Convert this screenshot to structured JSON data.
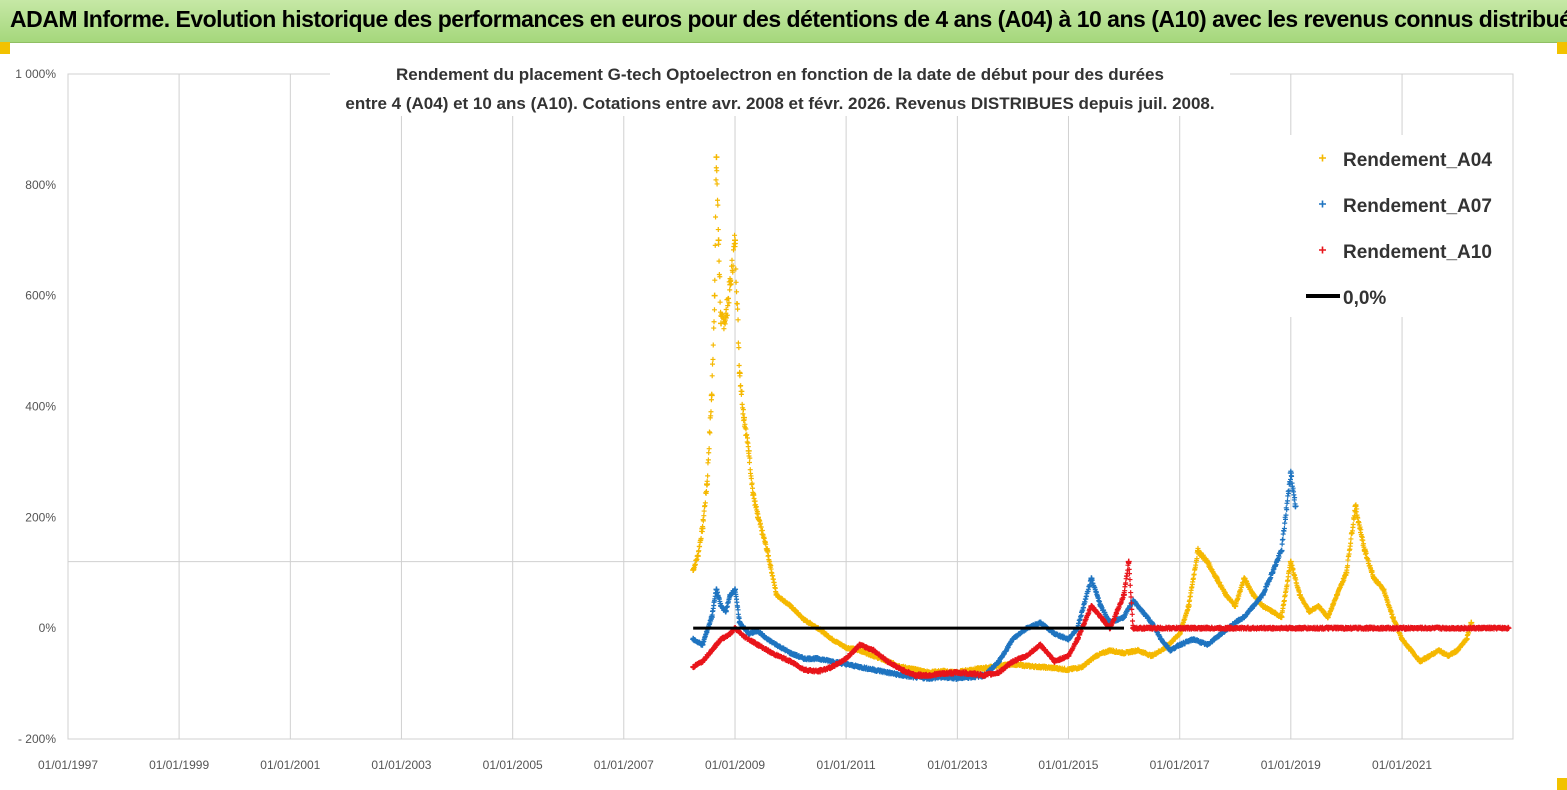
{
  "header": {
    "title": "ADAM Informe. Evolution historique des performances en euros pour des détentions de 4 ans (A04) à 10 ans (A10) avec les revenus connus distribués",
    "background": "#b5df8f"
  },
  "chart_data": {
    "type": "scatter",
    "title_line1": "Rendement du placement G-tech Optoelectron  en fonction de la date de début pour des durées",
    "title_line2": "entre 4 (A04) et 10 ans (A10).  Cotations entre avr. 2008 et févr. 2026. Revenus DISTRIBUES depuis juil. 2008.",
    "xlim": [
      "1997-01-01",
      "2022-12-31"
    ],
    "ylim": [
      -200,
      1000
    ],
    "y_ticks": [
      -200,
      0,
      200,
      400,
      600,
      800,
      1000
    ],
    "y_tick_labels": [
      "- 200%",
      "0%",
      "200%",
      "400%",
      "600%",
      "800%",
      "1 000%"
    ],
    "x_ticks": [
      "1997-01-01",
      "1999-01-01",
      "2001-01-01",
      "2003-01-01",
      "2005-01-01",
      "2007-01-01",
      "2009-01-01",
      "2011-01-01",
      "2013-01-01",
      "2015-01-01",
      "2017-01-01",
      "2019-01-01",
      "2021-01-01"
    ],
    "x_tick_labels": [
      "01/01/1997",
      "01/01/1999",
      "01/01/2001",
      "01/01/2003",
      "01/01/2005",
      "01/01/2007",
      "01/01/2009",
      "01/01/2011",
      "01/01/2013",
      "01/01/2015",
      "01/01/2017",
      "01/01/2019",
      "01/01/2021"
    ],
    "grid": true,
    "legend_position": "top-right",
    "series": [
      {
        "name": "Rendement_A04",
        "color": "#f5b800",
        "marker": "+",
        "points": [
          [
            "2008-04-01",
            105
          ],
          [
            "2008-05-01",
            130
          ],
          [
            "2008-06-01",
            180
          ],
          [
            "2008-07-01",
            260
          ],
          [
            "2008-08-01",
            420
          ],
          [
            "2008-08-20",
            600
          ],
          [
            "2008-09-01",
            850
          ],
          [
            "2008-09-15",
            700
          ],
          [
            "2008-10-01",
            550
          ],
          [
            "2008-11-01",
            560
          ],
          [
            "2008-12-01",
            620
          ],
          [
            "2009-01-01",
            700
          ],
          [
            "2009-02-01",
            460
          ],
          [
            "2009-03-01",
            380
          ],
          [
            "2009-04-01",
            320
          ],
          [
            "2009-05-01",
            240
          ],
          [
            "2009-06-01",
            200
          ],
          [
            "2009-08-01",
            140
          ],
          [
            "2009-10-01",
            60
          ],
          [
            "2010-01-01",
            40
          ],
          [
            "2010-04-01",
            15
          ],
          [
            "2010-07-01",
            0
          ],
          [
            "2010-10-01",
            -20
          ],
          [
            "2011-01-01",
            -35
          ],
          [
            "2011-04-01",
            -40
          ],
          [
            "2011-07-01",
            -50
          ],
          [
            "2011-10-01",
            -60
          ],
          [
            "2012-01-01",
            -70
          ],
          [
            "2012-04-01",
            -75
          ],
          [
            "2012-07-01",
            -80
          ],
          [
            "2012-10-01",
            -78
          ],
          [
            "2013-01-01",
            -80
          ],
          [
            "2013-04-01",
            -75
          ],
          [
            "2013-07-01",
            -72
          ],
          [
            "2013-10-01",
            -68
          ],
          [
            "2014-01-01",
            -65
          ],
          [
            "2014-04-01",
            -68
          ],
          [
            "2014-07-01",
            -70
          ],
          [
            "2014-10-01",
            -72
          ],
          [
            "2015-01-01",
            -75
          ],
          [
            "2015-04-01",
            -70
          ],
          [
            "2015-07-01",
            -50
          ],
          [
            "2015-10-01",
            -40
          ],
          [
            "2016-01-01",
            -45
          ],
          [
            "2016-04-01",
            -40
          ],
          [
            "2016-07-01",
            -50
          ],
          [
            "2016-10-01",
            -35
          ],
          [
            "2017-01-01",
            -10
          ],
          [
            "2017-03-01",
            40
          ],
          [
            "2017-05-01",
            140
          ],
          [
            "2017-07-01",
            120
          ],
          [
            "2017-09-01",
            90
          ],
          [
            "2017-11-01",
            60
          ],
          [
            "2018-01-01",
            40
          ],
          [
            "2018-03-01",
            90
          ],
          [
            "2018-05-01",
            60
          ],
          [
            "2018-07-01",
            40
          ],
          [
            "2018-09-01",
            30
          ],
          [
            "2018-11-01",
            20
          ],
          [
            "2019-01-01",
            120
          ],
          [
            "2019-03-01",
            60
          ],
          [
            "2019-05-01",
            30
          ],
          [
            "2019-07-01",
            40
          ],
          [
            "2019-09-01",
            20
          ],
          [
            "2019-11-01",
            60
          ],
          [
            "2020-01-01",
            100
          ],
          [
            "2020-03-01",
            220
          ],
          [
            "2020-05-01",
            140
          ],
          [
            "2020-07-01",
            90
          ],
          [
            "2020-09-01",
            70
          ],
          [
            "2020-11-01",
            20
          ],
          [
            "2021-01-01",
            -20
          ],
          [
            "2021-03-01",
            -40
          ],
          [
            "2021-05-01",
            -60
          ],
          [
            "2021-07-01",
            -50
          ],
          [
            "2021-09-01",
            -40
          ],
          [
            "2021-11-01",
            -50
          ],
          [
            "2022-01-01",
            -40
          ],
          [
            "2022-03-01",
            -20
          ],
          [
            "2022-04-01",
            10
          ]
        ]
      },
      {
        "name": "Rendement_A07",
        "color": "#1f74c0",
        "marker": "+",
        "points": [
          [
            "2008-04-01",
            -20
          ],
          [
            "2008-06-01",
            -30
          ],
          [
            "2008-08-01",
            20
          ],
          [
            "2008-09-01",
            70
          ],
          [
            "2008-10-01",
            40
          ],
          [
            "2008-11-01",
            30
          ],
          [
            "2008-12-01",
            60
          ],
          [
            "2009-01-01",
            70
          ],
          [
            "2009-02-01",
            10
          ],
          [
            "2009-04-01",
            -10
          ],
          [
            "2009-06-01",
            -5
          ],
          [
            "2009-08-01",
            -20
          ],
          [
            "2009-10-01",
            -30
          ],
          [
            "2010-01-01",
            -45
          ],
          [
            "2010-04-01",
            -55
          ],
          [
            "2010-07-01",
            -55
          ],
          [
            "2010-10-01",
            -60
          ],
          [
            "2011-01-01",
            -65
          ],
          [
            "2011-04-01",
            -70
          ],
          [
            "2011-07-01",
            -75
          ],
          [
            "2011-10-01",
            -80
          ],
          [
            "2012-01-01",
            -85
          ],
          [
            "2012-04-01",
            -88
          ],
          [
            "2012-07-01",
            -90
          ],
          [
            "2012-10-01",
            -88
          ],
          [
            "2013-01-01",
            -90
          ],
          [
            "2013-04-01",
            -88
          ],
          [
            "2013-07-01",
            -85
          ],
          [
            "2013-10-01",
            -60
          ],
          [
            "2014-01-01",
            -20
          ],
          [
            "2014-04-01",
            0
          ],
          [
            "2014-07-01",
            10
          ],
          [
            "2014-10-01",
            -10
          ],
          [
            "2015-01-01",
            -20
          ],
          [
            "2015-03-01",
            0
          ],
          [
            "2015-06-01",
            90
          ],
          [
            "2015-08-01",
            40
          ],
          [
            "2015-10-01",
            10
          ],
          [
            "2016-01-01",
            20
          ],
          [
            "2016-03-01",
            50
          ],
          [
            "2016-05-01",
            30
          ],
          [
            "2016-07-01",
            10
          ],
          [
            "2016-09-01",
            -20
          ],
          [
            "2016-11-01",
            -40
          ],
          [
            "2017-01-01",
            -30
          ],
          [
            "2017-04-01",
            -20
          ],
          [
            "2017-07-01",
            -30
          ],
          [
            "2017-10-01",
            -10
          ],
          [
            "2018-01-01",
            10
          ],
          [
            "2018-03-01",
            20
          ],
          [
            "2018-05-01",
            40
          ],
          [
            "2018-07-01",
            60
          ],
          [
            "2018-09-01",
            100
          ],
          [
            "2018-11-01",
            140
          ],
          [
            "2019-01-01",
            280
          ],
          [
            "2019-02-01",
            220
          ]
        ]
      },
      {
        "name": "Rendement_A10",
        "color": "#e8151b",
        "marker": "+",
        "points": [
          [
            "2008-04-01",
            -70
          ],
          [
            "2008-06-01",
            -60
          ],
          [
            "2008-08-01",
            -40
          ],
          [
            "2008-10-01",
            -20
          ],
          [
            "2008-12-01",
            -10
          ],
          [
            "2009-01-01",
            0
          ],
          [
            "2009-03-01",
            -15
          ],
          [
            "2009-06-01",
            -30
          ],
          [
            "2009-09-01",
            -45
          ],
          [
            "2010-01-01",
            -60
          ],
          [
            "2010-04-01",
            -75
          ],
          [
            "2010-07-01",
            -78
          ],
          [
            "2010-10-01",
            -70
          ],
          [
            "2011-01-01",
            -55
          ],
          [
            "2011-04-01",
            -30
          ],
          [
            "2011-07-01",
            -40
          ],
          [
            "2011-10-01",
            -60
          ],
          [
            "2012-01-01",
            -75
          ],
          [
            "2012-04-01",
            -85
          ],
          [
            "2012-07-01",
            -85
          ],
          [
            "2012-10-01",
            -82
          ],
          [
            "2013-01-01",
            -80
          ],
          [
            "2013-04-01",
            -82
          ],
          [
            "2013-07-01",
            -85
          ],
          [
            "2013-10-01",
            -80
          ],
          [
            "2014-01-01",
            -60
          ],
          [
            "2014-04-01",
            -50
          ],
          [
            "2014-07-01",
            -30
          ],
          [
            "2014-10-01",
            -60
          ],
          [
            "2015-01-01",
            -50
          ],
          [
            "2015-03-01",
            -20
          ],
          [
            "2015-06-01",
            40
          ],
          [
            "2015-08-01",
            20
          ],
          [
            "2015-10-01",
            0
          ],
          [
            "2016-01-01",
            60
          ],
          [
            "2016-02-01",
            120
          ],
          [
            "2016-03-01",
            0
          ],
          [
            "2016-06-01",
            0
          ],
          [
            "2017-01-01",
            0
          ],
          [
            "2018-01-01",
            0
          ],
          [
            "2019-01-01",
            0
          ],
          [
            "2020-01-01",
            0
          ],
          [
            "2021-01-01",
            0
          ],
          [
            "2022-01-01",
            0
          ],
          [
            "2022-12-01",
            0
          ]
        ]
      },
      {
        "name": "0,0%",
        "color": "#000000",
        "marker": "line",
        "points": [
          [
            "2008-04-01",
            0
          ],
          [
            "2016-01-01",
            0
          ]
        ]
      }
    ]
  }
}
